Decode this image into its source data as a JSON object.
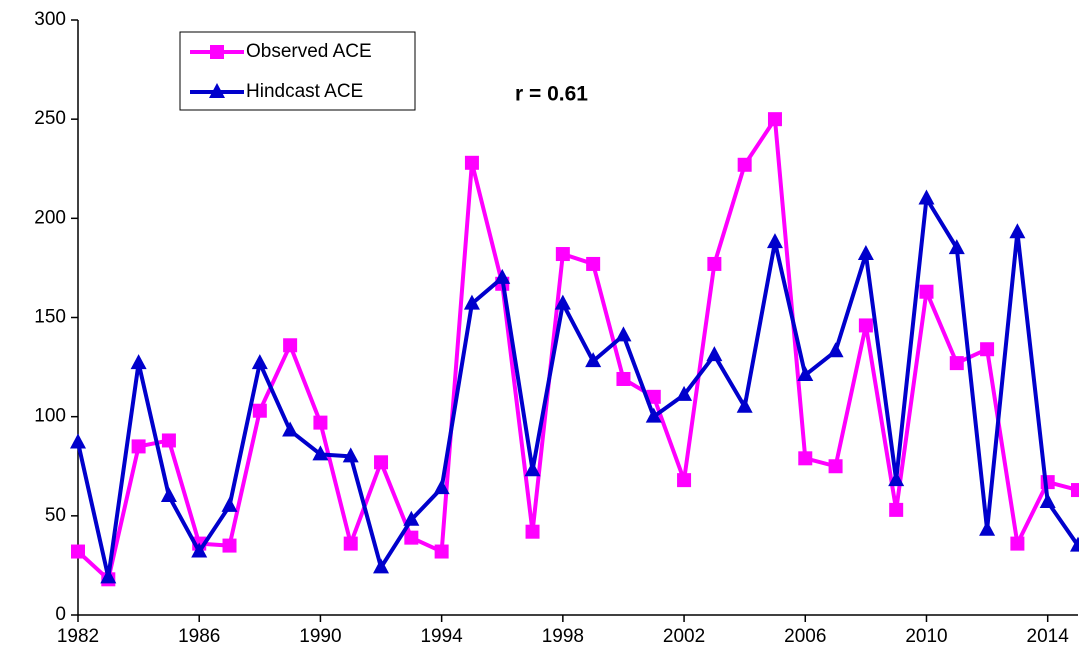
{
  "chart_data": {
    "type": "line",
    "annotation": "r = 0.61",
    "x": [
      1982,
      1983,
      1984,
      1985,
      1986,
      1987,
      1988,
      1989,
      1990,
      1991,
      1992,
      1993,
      1994,
      1995,
      1996,
      1997,
      1998,
      1999,
      2000,
      2001,
      2002,
      2003,
      2004,
      2005,
      2006,
      2007,
      2008,
      2009,
      2010,
      2011,
      2012,
      2013,
      2014,
      2015
    ],
    "series": [
      {
        "name": "Observed ACE",
        "color": "#ff00ff",
        "marker": "square",
        "values": [
          32,
          18,
          85,
          88,
          36,
          35,
          103,
          136,
          97,
          36,
          77,
          39,
          32,
          228,
          167,
          42,
          182,
          177,
          119,
          110,
          68,
          177,
          227,
          250,
          79,
          75,
          146,
          53,
          163,
          127,
          134,
          36,
          67,
          63
        ]
      },
      {
        "name": "Hindcast ACE",
        "color": "#0000cc",
        "marker": "triangle",
        "values": [
          87,
          19,
          127,
          60,
          32,
          55,
          127,
          93,
          81,
          80,
          24,
          48,
          64,
          157,
          170,
          73,
          157,
          128,
          141,
          100,
          111,
          131,
          105,
          188,
          121,
          133,
          182,
          68,
          210,
          185,
          43,
          193,
          57,
          35
        ]
      }
    ],
    "xlim": [
      1982,
      2015
    ],
    "xticks": [
      1982,
      1986,
      1990,
      1994,
      1998,
      2002,
      2006,
      2010,
      2014
    ],
    "ylim": [
      0,
      300
    ],
    "yticks": [
      0,
      50,
      100,
      150,
      200,
      250,
      300
    ],
    "grid": false,
    "legend": "top-left"
  }
}
